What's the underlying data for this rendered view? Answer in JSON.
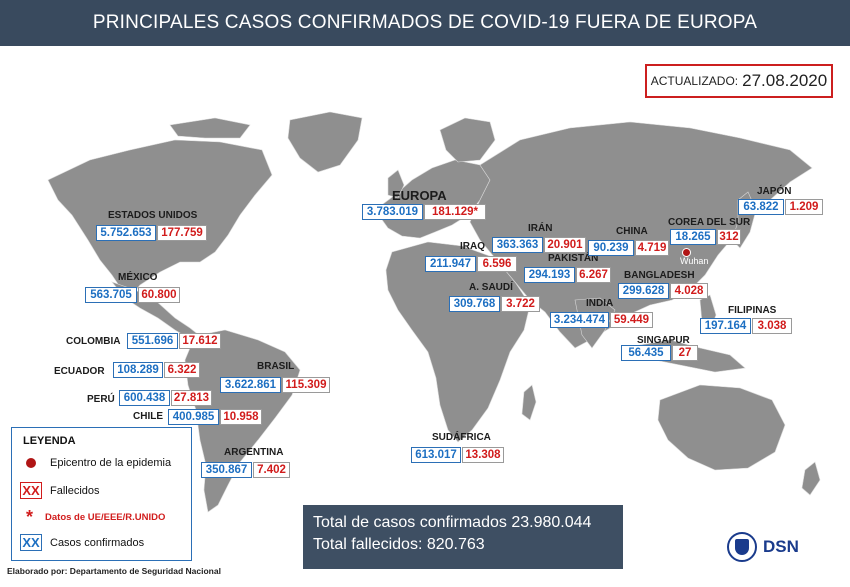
{
  "title": "PRINCIPALES CASOS CONFIRMADOS DE COVID-19 FUERA DE EUROPA",
  "update": {
    "label": "ACTUALIZADO:",
    "date": "27.08.2020"
  },
  "regions": [
    {
      "id": "europa",
      "name": "EUROPA",
      "cases": "3.783.019",
      "deaths": "181.129*"
    },
    {
      "id": "estados-unidos",
      "name": "ESTADOS UNIDOS",
      "cases": "5.752.653",
      "deaths": "177.759"
    },
    {
      "id": "mexico",
      "name": "MÉXICO",
      "cases": "563.705",
      "deaths": "60.800"
    },
    {
      "id": "colombia",
      "name": "COLOMBIA",
      "cases": "551.696",
      "deaths": "17.612"
    },
    {
      "id": "ecuador",
      "name": "ECUADOR",
      "cases": "108.289",
      "deaths": "6.322"
    },
    {
      "id": "peru",
      "name": "PERÚ",
      "cases": "600.438",
      "deaths": "27.813"
    },
    {
      "id": "chile",
      "name": "CHILE",
      "cases": "400.985",
      "deaths": "10.958"
    },
    {
      "id": "brasil",
      "name": "BRASIL",
      "cases": "3.622.861",
      "deaths": "115.309"
    },
    {
      "id": "argentina",
      "name": "ARGENTINA",
      "cases": "350.867",
      "deaths": "7.402"
    },
    {
      "id": "sudafrica",
      "name": "SUDÁFRICA",
      "cases": "613.017",
      "deaths": "13.308"
    },
    {
      "id": "iraq",
      "name": "IRAQ",
      "cases": "211.947",
      "deaths": "6.596"
    },
    {
      "id": "iran",
      "name": "IRÁN",
      "cases": "363.363",
      "deaths": "20.901"
    },
    {
      "id": "a-saudi",
      "name": "A. SAUDÍ",
      "cases": "309.768",
      "deaths": "3.722"
    },
    {
      "id": "pakistan",
      "name": "PAKISTÁN",
      "cases": "294.193",
      "deaths": "6.267"
    },
    {
      "id": "india",
      "name": "INDIA",
      "cases": "3.234.474",
      "deaths": "59.449"
    },
    {
      "id": "china",
      "name": "CHINA",
      "cases": "90.239",
      "deaths": "4.719"
    },
    {
      "id": "bangladesh",
      "name": "BANGLADESH",
      "cases": "299.628",
      "deaths": "4.028"
    },
    {
      "id": "corea-del-sur",
      "name": "COREA DEL SUR",
      "cases": "18.265",
      "deaths": "312"
    },
    {
      "id": "japon",
      "name": "JAPÓN",
      "cases": "63.822",
      "deaths": "1.209"
    },
    {
      "id": "filipinas",
      "name": "FILIPINAS",
      "cases": "197.164",
      "deaths": "3.038"
    },
    {
      "id": "singapur",
      "name": "SINGAPUR",
      "cases": "56.435",
      "deaths": "27"
    }
  ],
  "wuhan_label": "Wuhan",
  "legend": {
    "title": "LEYENDA",
    "epicentro": "Epicentro de la epidemia",
    "xx": "XX",
    "fallecidos": "Fallecidos",
    "star": "*",
    "datos_ue": "Datos de UE/EEE/R.UNIDO",
    "casos": "Casos confirmados"
  },
  "totals": {
    "cases_line": "Total de casos confirmados 23.980.044",
    "deaths_line": "Total fallecidos: 820.763"
  },
  "credit": "Elaborado por: Departamento de Seguridad Nacional",
  "logo_text": "DSN",
  "colors": {
    "title_bg": "#394a5e",
    "map_land": "#8f8f8f",
    "cases_blue": "#1d6fc2",
    "deaths_red": "#d11c1c",
    "totals_bg": "#3e4f63"
  }
}
